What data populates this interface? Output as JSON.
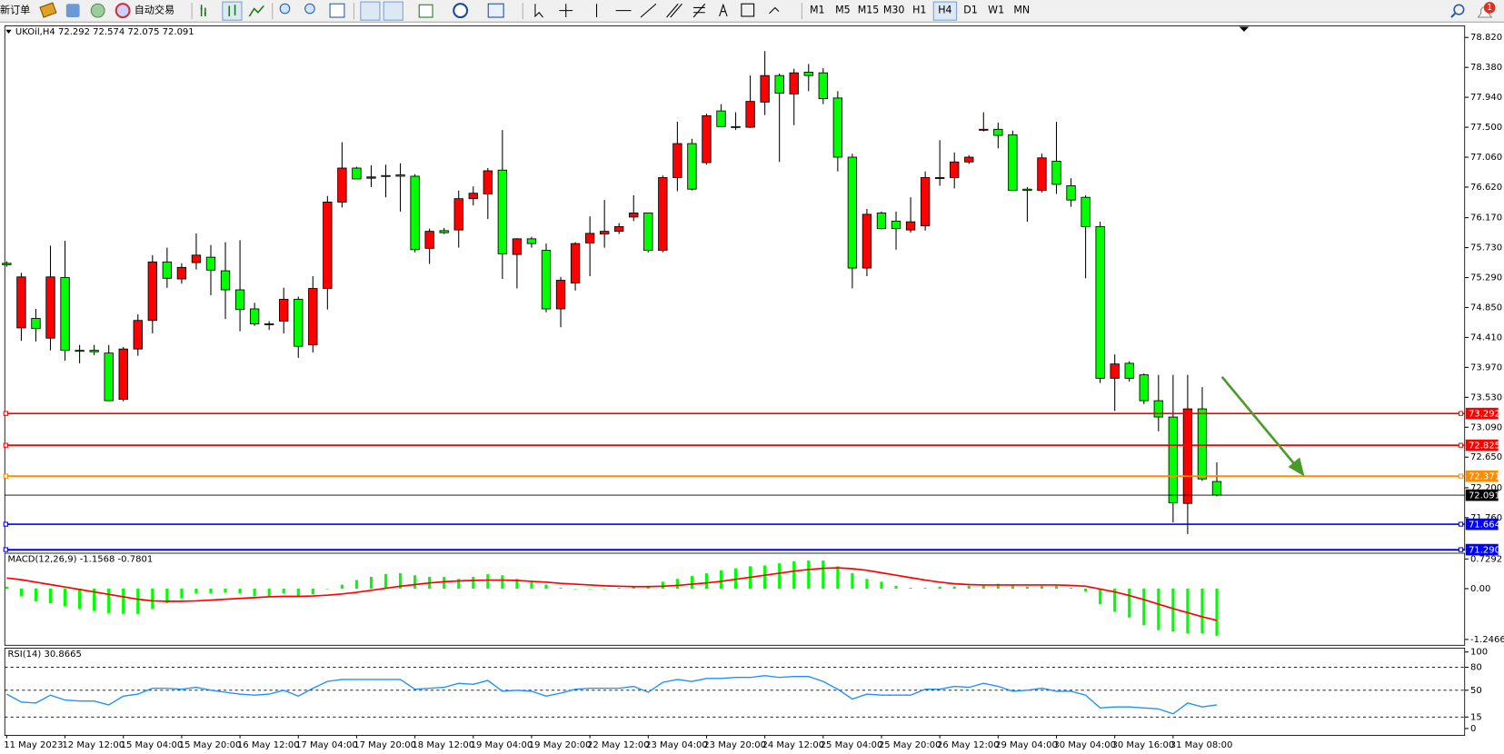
{
  "toolbar": {
    "new_order": "新订单",
    "auto_trading": "自动交易",
    "timeframes": [
      "M1",
      "M5",
      "M15",
      "M30",
      "H1",
      "H4",
      "D1",
      "W1",
      "MN"
    ],
    "active_timeframe": "H4",
    "notifications": 1
  },
  "chart_data": [
    {
      "type": "candlestick",
      "title": "UKOil,H4 72.292 72.574 72.075 72.091",
      "categories": [
        "11 May 2023",
        null,
        null,
        null,
        "12 May 12:00",
        null,
        null,
        null,
        "15 May 04:00",
        null,
        null,
        null,
        "15 May 20:00",
        null,
        null,
        null,
        "16 May 12:00",
        null,
        null,
        null,
        "17 May 04:00",
        null,
        null,
        null,
        "17 May 20:00",
        null,
        null,
        null,
        "18 May 12:00",
        null,
        null,
        null,
        "19 May 04:00",
        null,
        null,
        null,
        "19 May 20:00",
        null,
        null,
        null,
        "22 May 12:00",
        null,
        null,
        null,
        "23 May 04:00",
        null,
        null,
        null,
        "23 May 20:00",
        null,
        null,
        null,
        "24 May 12:00",
        null,
        null,
        null,
        "25 May 04:00",
        null,
        null,
        null,
        "25 May 20:00",
        null,
        null,
        null,
        "26 May 12:00",
        null,
        null,
        null,
        "29 May 04:00",
        null,
        null,
        null,
        "30 May 04:00",
        null,
        null,
        null,
        "30 May 16:00",
        null,
        null,
        null,
        "31 May 08:00",
        null,
        null,
        null
      ],
      "open": [
        75.5,
        74.55,
        74.69,
        74.4,
        75.29,
        74.22,
        74.22,
        74.18,
        73.5,
        74.24,
        74.66,
        75.52,
        75.27,
        75.51,
        75.59,
        75.39,
        75.11,
        74.83,
        74.61,
        74.65,
        74.97,
        74.3,
        75.13,
        76.4,
        76.9,
        76.75,
        76.79,
        76.8,
        76.78,
        75.72,
        75.98,
        75.99,
        76.45,
        76.52,
        76.87,
        75.63,
        75.86,
        75.69,
        74.83,
        75.21,
        75.8,
        75.93,
        75.97,
        76.18,
        76.24,
        75.69,
        76.76,
        77.26,
        76.98,
        77.74,
        77.51,
        77.5,
        77.87,
        78.26,
        77.99,
        78.31,
        78.3,
        77.93,
        77.06,
        75.43,
        76.24,
        76.12,
        75.99,
        76.05,
        76.75,
        76.76,
        76.99,
        77.46,
        77.47,
        77.39,
        76.59,
        76.57,
        77.0,
        76.64,
        76.47,
        76.04,
        73.81,
        74.03,
        73.86,
        73.48,
        73.24,
        71.97,
        73.36,
        72.292
      ],
      "high": [
        75.53,
        75.36,
        74.83,
        75.76,
        75.83,
        74.3,
        74.3,
        74.3,
        74.27,
        74.75,
        75.62,
        75.73,
        75.5,
        75.94,
        75.77,
        75.81,
        75.84,
        74.92,
        74.65,
        75.14,
        75.01,
        75.31,
        76.49,
        77.28,
        76.92,
        76.94,
        76.95,
        76.97,
        76.81,
        76.01,
        76.02,
        76.57,
        76.63,
        76.9,
        77.46,
        75.87,
        75.89,
        75.79,
        75.3,
        75.81,
        76.19,
        76.43,
        76.09,
        76.5,
        76.24,
        76.79,
        77.58,
        77.33,
        77.7,
        77.84,
        77.72,
        78.26,
        78.62,
        78.29,
        78.36,
        78.43,
        78.37,
        78.03,
        77.11,
        76.3,
        76.26,
        76.26,
        76.47,
        76.85,
        77.31,
        77.13,
        77.09,
        77.72,
        77.57,
        77.45,
        76.62,
        77.11,
        77.58,
        76.75,
        76.5,
        76.11,
        74.16,
        74.06,
        73.88,
        73.86,
        73.86,
        73.86,
        73.68,
        72.574
      ],
      "low": [
        75.45,
        74.36,
        74.35,
        74.22,
        74.07,
        74.03,
        74.15,
        73.48,
        73.47,
        74.14,
        74.47,
        75.14,
        75.2,
        75.41,
        75.03,
        74.68,
        74.5,
        74.58,
        74.52,
        74.47,
        74.11,
        74.19,
        74.82,
        76.32,
        76.74,
        76.62,
        76.47,
        76.26,
        75.66,
        75.49,
        75.93,
        75.73,
        76.35,
        76.15,
        75.27,
        75.13,
        75.73,
        74.78,
        74.56,
        75.1,
        75.31,
        75.73,
        75.93,
        76.12,
        75.66,
        75.66,
        76.56,
        76.57,
        76.95,
        77.5,
        77.46,
        77.49,
        77.68,
        76.99,
        77.53,
        78.03,
        77.84,
        76.85,
        75.13,
        75.31,
        76.0,
        75.7,
        75.95,
        75.98,
        76.64,
        76.6,
        76.96,
        77.44,
        77.19,
        76.57,
        76.11,
        76.54,
        76.52,
        76.33,
        75.28,
        73.74,
        73.33,
        73.76,
        73.43,
        73.03,
        71.69,
        71.52,
        72.3,
        72.075
      ],
      "close": [
        75.48,
        75.3,
        74.54,
        75.3,
        74.22,
        74.21,
        74.2,
        73.48,
        74.24,
        74.66,
        75.52,
        75.28,
        75.44,
        75.62,
        75.4,
        75.11,
        74.82,
        74.61,
        74.6,
        74.97,
        74.28,
        75.13,
        76.4,
        76.9,
        76.74,
        76.77,
        76.78,
        76.78,
        75.7,
        75.97,
        75.95,
        76.45,
        76.53,
        76.86,
        75.64,
        75.86,
        75.79,
        74.83,
        75.25,
        75.79,
        75.94,
        75.97,
        76.04,
        76.24,
        75.69,
        76.76,
        77.26,
        76.59,
        77.67,
        77.51,
        77.5,
        77.88,
        78.26,
        78.0,
        78.3,
        78.26,
        77.92,
        77.06,
        75.43,
        76.22,
        76.01,
        76.01,
        76.11,
        76.76,
        76.76,
        76.99,
        77.06,
        77.47,
        77.38,
        76.57,
        76.57,
        77.05,
        76.66,
        76.43,
        76.04,
        73.81,
        74.02,
        73.81,
        73.48,
        73.24,
        71.98,
        73.36,
        72.33,
        72.091
      ],
      "up_color": "#ff0000",
      "down_color": "#00ff00",
      "ylim": [
        71.28,
        78.99
      ],
      "yticks": [
        {
          "value": 78.82,
          "label": "78.820"
        },
        {
          "value": 78.38,
          "label": "78.380"
        },
        {
          "value": 77.94,
          "label": "77.940"
        },
        {
          "value": 77.5,
          "label": "77.500"
        },
        {
          "value": 77.06,
          "label": "77.060"
        },
        {
          "value": 76.62,
          "label": "76.620"
        },
        {
          "value": 76.17,
          "label": "76.170"
        },
        {
          "value": 75.73,
          "label": "75.730"
        },
        {
          "value": 75.29,
          "label": "75.290"
        },
        {
          "value": 74.85,
          "label": "74.850"
        },
        {
          "value": 74.41,
          "label": "74.410"
        },
        {
          "value": 73.97,
          "label": "73.970"
        },
        {
          "value": 73.53,
          "label": "73.530"
        },
        {
          "value": 73.09,
          "label": "73.090"
        },
        {
          "value": 72.65,
          "label": "72.650"
        },
        {
          "value": 72.2,
          "label": "72.200"
        },
        {
          "value": 71.76,
          "label": "71.760"
        }
      ],
      "levels": [
        {
          "value": 73.292,
          "color": "#ff0000"
        },
        {
          "value": 72.825,
          "color": "#ff0000"
        },
        {
          "value": 72.371,
          "color": "#ff8c00"
        },
        {
          "value": 72.091,
          "color": "#000000"
        },
        {
          "value": 71.664,
          "color": "#0000ff"
        },
        {
          "value": 71.29,
          "label": "71.290",
          "color": "#0000ff"
        }
      ]
    },
    {
      "type": "macd",
      "title": "MACD(12,26,9) -1.1568 -0.7801",
      "series": [
        {
          "style": "histogram",
          "color": "#00ff00",
          "values": [
            0.05,
            -0.19,
            -0.31,
            -0.36,
            -0.43,
            -0.5,
            -0.55,
            -0.6,
            -0.62,
            -0.62,
            -0.5,
            -0.36,
            -0.24,
            -0.12,
            -0.12,
            -0.1,
            -0.12,
            -0.19,
            -0.19,
            -0.12,
            -0.19,
            -0.14,
            0.0,
            0.1,
            0.21,
            0.29,
            0.36,
            0.38,
            0.33,
            0.29,
            0.29,
            0.24,
            0.29,
            0.36,
            0.33,
            0.24,
            0.17,
            0.1,
            0.02,
            0.0,
            0.0,
            0.0,
            0.02,
            0.05,
            0.07,
            0.17,
            0.24,
            0.31,
            0.38,
            0.45,
            0.5,
            0.55,
            0.57,
            0.62,
            0.67,
            0.69,
            0.69,
            0.55,
            0.38,
            0.24,
            0.17,
            0.07,
            0.02,
            0.02,
            0.05,
            0.05,
            0.07,
            0.1,
            0.12,
            0.1,
            0.05,
            0.07,
            0.07,
            0.02,
            -0.07,
            -0.38,
            -0.57,
            -0.71,
            -0.9,
            -1.02,
            -1.05,
            -1.1,
            -1.1,
            -1.1568
          ]
        },
        {
          "style": "line",
          "color": "#ff0000",
          "values": [
            0.26,
            0.22,
            0.16,
            0.1,
            0.04,
            -0.02,
            -0.08,
            -0.14,
            -0.2,
            -0.26,
            -0.3,
            -0.31,
            -0.31,
            -0.3,
            -0.28,
            -0.26,
            -0.24,
            -0.22,
            -0.2,
            -0.19,
            -0.19,
            -0.18,
            -0.16,
            -0.13,
            -0.09,
            -0.04,
            0.01,
            0.06,
            0.1,
            0.14,
            0.17,
            0.19,
            0.2,
            0.21,
            0.21,
            0.2,
            0.18,
            0.16,
            0.13,
            0.11,
            0.09,
            0.07,
            0.06,
            0.05,
            0.05,
            0.06,
            0.08,
            0.11,
            0.14,
            0.18,
            0.23,
            0.28,
            0.33,
            0.38,
            0.43,
            0.47,
            0.5,
            0.51,
            0.49,
            0.45,
            0.39,
            0.33,
            0.27,
            0.21,
            0.16,
            0.12,
            0.1,
            0.09,
            0.09,
            0.09,
            0.09,
            0.09,
            0.09,
            0.08,
            0.06,
            -0.01,
            -0.08,
            -0.17,
            -0.27,
            -0.38,
            -0.49,
            -0.59,
            -0.69,
            -0.7801
          ]
        }
      ],
      "ylim": [
        -1.39,
        0.87
      ],
      "yticks": [
        0.7292,
        {
          "value": 0,
          "label": "0.00"
        },
        -1.2466
      ]
    },
    {
      "type": "line",
      "title": "RSI(14) 30.8665",
      "color": "#1e90ff",
      "values": [
        44.9,
        34.6,
        33.3,
        43.6,
        37.2,
        35.9,
        35.9,
        30.8,
        42.3,
        44.9,
        52.6,
        52.6,
        51.3,
        53.8,
        50.0,
        47.4,
        44.9,
        43.6,
        44.9,
        50.0,
        42.3,
        52.6,
        61.5,
        64.1,
        64.1,
        64.1,
        64.1,
        64.1,
        51.3,
        52.6,
        53.8,
        59.0,
        57.7,
        62.8,
        48.7,
        50.0,
        48.7,
        42.3,
        46.2,
        51.3,
        52.6,
        52.6,
        52.6,
        55.1,
        47.4,
        60.3,
        64.1,
        61.5,
        65.4,
        65.4,
        66.7,
        66.7,
        69.2,
        66.7,
        67.9,
        67.9,
        61.5,
        51.3,
        38.5,
        44.9,
        43.6,
        43.6,
        43.6,
        51.3,
        51.3,
        55.1,
        53.8,
        59.0,
        55.1,
        48.7,
        50.0,
        52.6,
        48.7,
        48.7,
        43.6,
        26.9,
        28.2,
        28.2,
        26.9,
        25.6,
        19.2,
        33.3,
        28.2,
        30.8665
      ],
      "ylim": [
        -9,
        105
      ],
      "yticks": [
        100,
        80,
        50,
        15,
        0
      ],
      "levels": [
        80,
        50,
        15
      ],
      "level_style": "dashed"
    }
  ]
}
